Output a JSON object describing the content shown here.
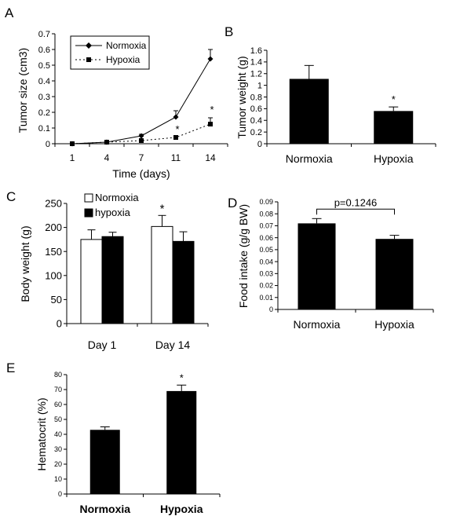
{
  "chart_data": [
    {
      "panel": "A",
      "type": "line",
      "xlabel": "Time (days)",
      "ylabel": "Tumor size (cm3)",
      "categories": [
        "1",
        "4",
        "7",
        "11",
        "14"
      ],
      "ylim": [
        0,
        0.7
      ],
      "yticks": [
        "0",
        "0.1",
        "0.2",
        "0.3",
        "0.4",
        "0.5",
        "0.6",
        "0.7"
      ],
      "legend_position": "top-center",
      "series": [
        {
          "name": "Normoxia",
          "values": [
            0.0,
            0.01,
            0.05,
            0.17,
            0.54
          ],
          "errors": [
            0,
            0,
            0.01,
            0.04,
            0.06
          ]
        },
        {
          "name": "Hypoxia",
          "values": [
            0.0,
            0.01,
            0.02,
            0.04,
            0.125
          ],
          "errors": [
            0,
            0,
            0,
            0,
            0.04
          ]
        }
      ],
      "significance": [
        "",
        "",
        "",
        "*",
        "*"
      ]
    },
    {
      "panel": "B",
      "type": "bar",
      "ylabel": "Tumor weight (g)",
      "categories": [
        "Normoxia",
        "Hypoxia"
      ],
      "values": [
        1.11,
        0.56
      ],
      "errors": [
        0.23,
        0.07
      ],
      "ylim": [
        0,
        1.6
      ],
      "yticks": [
        "0",
        "0.2",
        "0.4",
        "0.6",
        "0.8",
        "1",
        "1.2",
        "1.4",
        "1.6"
      ],
      "significance": [
        "",
        "*"
      ]
    },
    {
      "panel": "C",
      "type": "bar",
      "ylabel": "Body weight (g)",
      "categories": [
        "Day 1",
        "Day 14"
      ],
      "ylim": [
        0,
        250
      ],
      "yticks": [
        "0",
        "50",
        "100",
        "150",
        "200",
        "250"
      ],
      "legend_position": "top-left",
      "series": [
        {
          "name": "Normoxia",
          "color": "#ffffff",
          "values": [
            175,
            202
          ],
          "errors": [
            20,
            23
          ]
        },
        {
          "name": "hypoxia",
          "color": "#000000",
          "values": [
            181,
            171
          ],
          "errors": [
            9,
            20
          ]
        }
      ],
      "significance": [
        "",
        "*"
      ]
    },
    {
      "panel": "D",
      "type": "bar",
      "ylabel": "Food intake (g/g BW)",
      "categories": [
        "Normoxia",
        "Hypoxia"
      ],
      "values": [
        0.072,
        0.059
      ],
      "errors": [
        0.004,
        0.003
      ],
      "ylim": [
        0,
        0.09
      ],
      "yticks": [
        "0",
        "0.01",
        "0.02",
        "0.03",
        "0.04",
        "0.05",
        "0.06",
        "0.07",
        "0.08",
        "0.09"
      ],
      "annotation": "p=0.1246"
    },
    {
      "panel": "E",
      "type": "bar",
      "ylabel": "Hematocrit (%)",
      "categories": [
        "Normoxia",
        "Hypoxia"
      ],
      "values": [
        43,
        69
      ],
      "errors": [
        2,
        4
      ],
      "ylim": [
        0,
        80
      ],
      "yticks": [
        "0",
        "10",
        "20",
        "30",
        "40",
        "50",
        "60",
        "70",
        "80"
      ],
      "significance": [
        "",
        "*"
      ]
    }
  ]
}
